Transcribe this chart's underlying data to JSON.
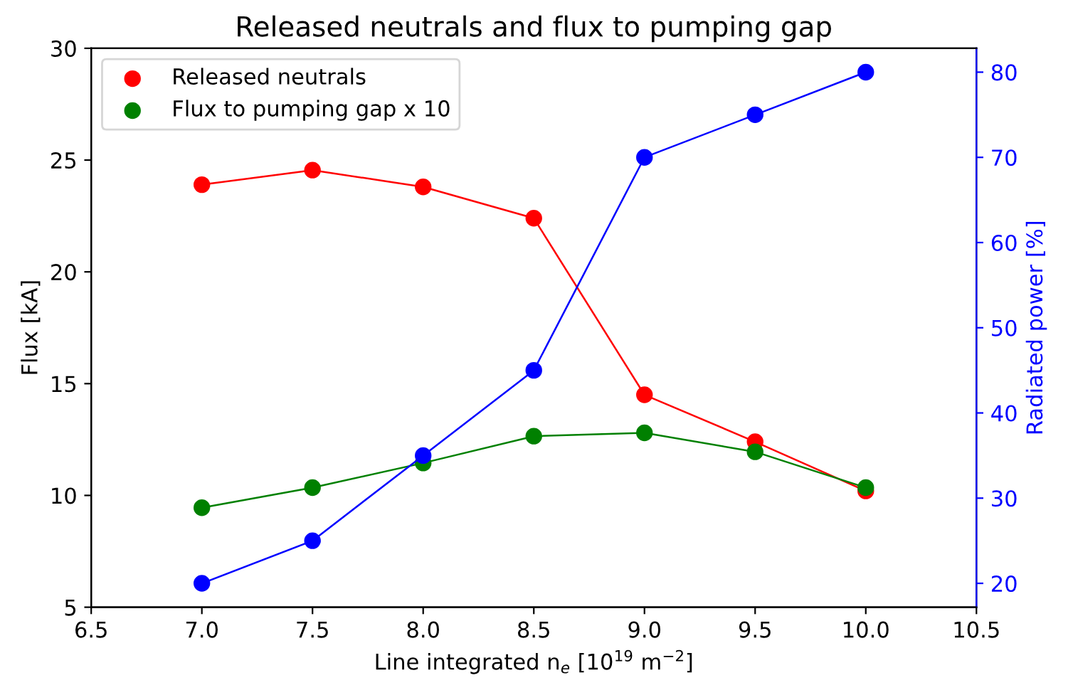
{
  "chart_data": {
    "type": "line",
    "title": "Released neutrals and flux to pumping gap",
    "xlabel": "Line integrated n$_{e}$ [10$^{19}$ m$^{−2}$]",
    "ylabel": "Flux [kA]",
    "y2label": "Radiated power [%]",
    "x": [
      7.0,
      7.5,
      8.0,
      8.5,
      9.0,
      9.5,
      10.0
    ],
    "series": [
      {
        "name": "Released neutrals",
        "color": "#ff0000",
        "values": [
          23.9,
          24.55,
          23.8,
          22.4,
          14.5,
          12.4,
          10.2
        ]
      },
      {
        "name": "Flux to pumping gap x 10",
        "color": "#008000",
        "values": [
          9.45,
          10.35,
          11.45,
          12.65,
          12.8,
          11.95,
          10.35
        ]
      },
      {
        "color": "#0000ff",
        "axis": "y2",
        "values": [
          20,
          25,
          35,
          45,
          70,
          75,
          80
        ]
      }
    ],
    "xlim": [
      6.5,
      10.5
    ],
    "xticks": [
      {
        "value": 6.5,
        "label": "6.5"
      },
      {
        "value": 7.0,
        "label": "7.0"
      },
      {
        "value": 7.5,
        "label": "7.5"
      },
      {
        "value": 8.0,
        "label": "8.0"
      },
      {
        "value": 8.5,
        "label": "8.5"
      },
      {
        "value": 9.0,
        "label": "9.0"
      },
      {
        "value": 9.5,
        "label": "9.5"
      },
      {
        "value": 10.0,
        "label": "10.0"
      },
      {
        "value": 10.5,
        "label": "10.5"
      }
    ],
    "ylim": [
      5,
      30
    ],
    "yticks": [
      5,
      10,
      15,
      20,
      25,
      30
    ],
    "y2lim": [
      17.2,
      82.8
    ],
    "y2ticks": [
      20,
      30,
      40,
      50,
      60,
      70,
      80
    ],
    "marker": "circle",
    "line_style": "solid",
    "legend": "top left",
    "grid": false
  }
}
